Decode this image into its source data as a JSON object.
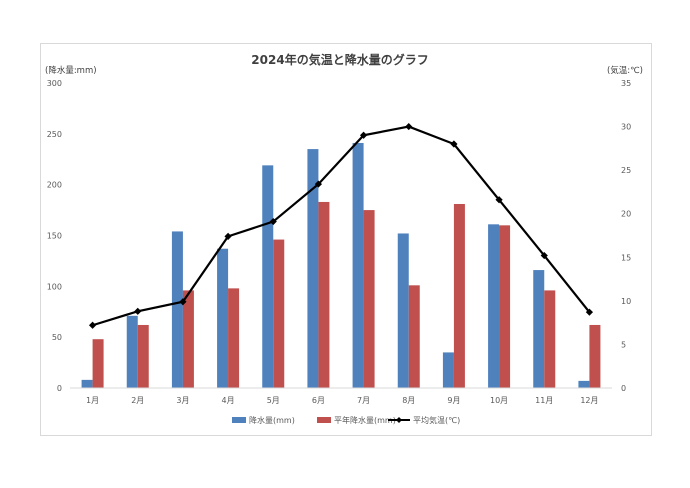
{
  "chart_data": {
    "type": "bar",
    "title": "2024年の気温と降水量のグラフ",
    "ylabel_left": "(降水量:mm)",
    "ylabel_right": "(気温:℃)",
    "categories": [
      "1月",
      "2月",
      "3月",
      "4月",
      "5月",
      "6月",
      "7月",
      "8月",
      "9月",
      "10月",
      "11月",
      "12月"
    ],
    "ylim_left": [
      0,
      300
    ],
    "yticks_left": [
      0,
      50,
      100,
      150,
      200,
      250,
      300
    ],
    "ylim_right": [
      0,
      35
    ],
    "yticks_right": [
      0,
      5,
      10,
      15,
      20,
      25,
      30,
      35
    ],
    "grid": false,
    "legend_position": "bottom",
    "series": [
      {
        "name": "降水量(mm)",
        "type": "bar",
        "axis": "left",
        "color": "#4f81bd",
        "values": [
          8,
          71,
          154,
          137,
          219,
          235,
          241,
          152,
          35,
          161,
          116,
          7
        ]
      },
      {
        "name": "平年降水量(mm)",
        "type": "bar",
        "axis": "left",
        "color": "#c0504d",
        "values": [
          48,
          62,
          96,
          98,
          146,
          183,
          175,
          101,
          181,
          160,
          96,
          62
        ]
      },
      {
        "name": "平均気温(℃)",
        "type": "line",
        "axis": "right",
        "color": "#000000",
        "values": [
          7.2,
          8.8,
          9.9,
          17.4,
          19.1,
          23.4,
          29.0,
          30.0,
          28.0,
          21.6,
          15.2,
          8.7
        ]
      }
    ]
  }
}
